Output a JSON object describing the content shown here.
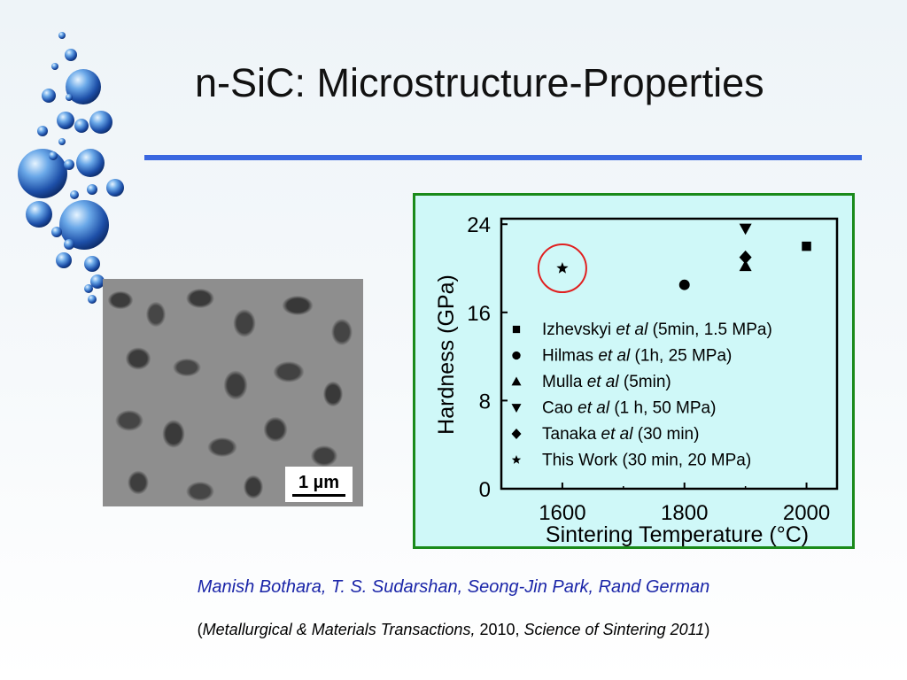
{
  "slide": {
    "title": "n-SiC: Microstructure-Properties",
    "scale_bar_label": "1 µm",
    "authors": "Manish Bothara, T. S. Sudarshan, Seong-Jin Park, Rand German",
    "citation": {
      "open": "(",
      "journal": "Metallurgical & Materials Transactions,",
      "year": " 2010, ",
      "proceedings": "Science of Sintering 2011",
      "close": ")"
    },
    "decoration_icon": "globe-bubbles",
    "accent_rule_color": "#3a67e0",
    "panel_border_color": "#1a8a1a",
    "panel_fill_color": "#cff8f8",
    "highlight_circle_color": "#e02020"
  },
  "chart_data": {
    "type": "scatter",
    "xlabel": "Sintering Temperature (°C)",
    "ylabel": "Hardness (GPa)",
    "xlim": [
      1500,
      2050
    ],
    "ylim": [
      0,
      24.5
    ],
    "x_ticks": [
      1600,
      1800,
      2000
    ],
    "y_ticks": [
      0,
      8,
      16,
      24
    ],
    "grid": false,
    "legend_placement": "inside-right",
    "series": [
      {
        "author": "Izhevskyi",
        "etal": "et al",
        "note": " (5min, 1.5 MPa)",
        "marker": "square",
        "points": [
          {
            "x": 2000,
            "y": 22
          }
        ]
      },
      {
        "author": "Hilmas",
        "etal": "et al",
        "note": " (1h, 25 MPa)",
        "marker": "circle",
        "points": [
          {
            "x": 1800,
            "y": 18.5
          }
        ]
      },
      {
        "author": "Mulla",
        "etal": "et al",
        "note": " (5min)",
        "marker": "triangle-up",
        "points": [
          {
            "x": 1900,
            "y": 20.2
          }
        ]
      },
      {
        "author": "Cao",
        "etal": "et al",
        "note": " (1 h, 50 MPa)",
        "marker": "triangle-down",
        "points": [
          {
            "x": 1900,
            "y": 23.6
          }
        ]
      },
      {
        "author": "Tanaka",
        "etal": "et al",
        "note": " (30 min)",
        "marker": "diamond",
        "points": [
          {
            "x": 1900,
            "y": 21
          }
        ]
      },
      {
        "author": "This Work",
        "etal": "",
        "note": " (30 min, 20 MPa)",
        "marker": "star",
        "points": [
          {
            "x": 1600,
            "y": 20
          }
        ],
        "highlighted": true
      }
    ]
  }
}
